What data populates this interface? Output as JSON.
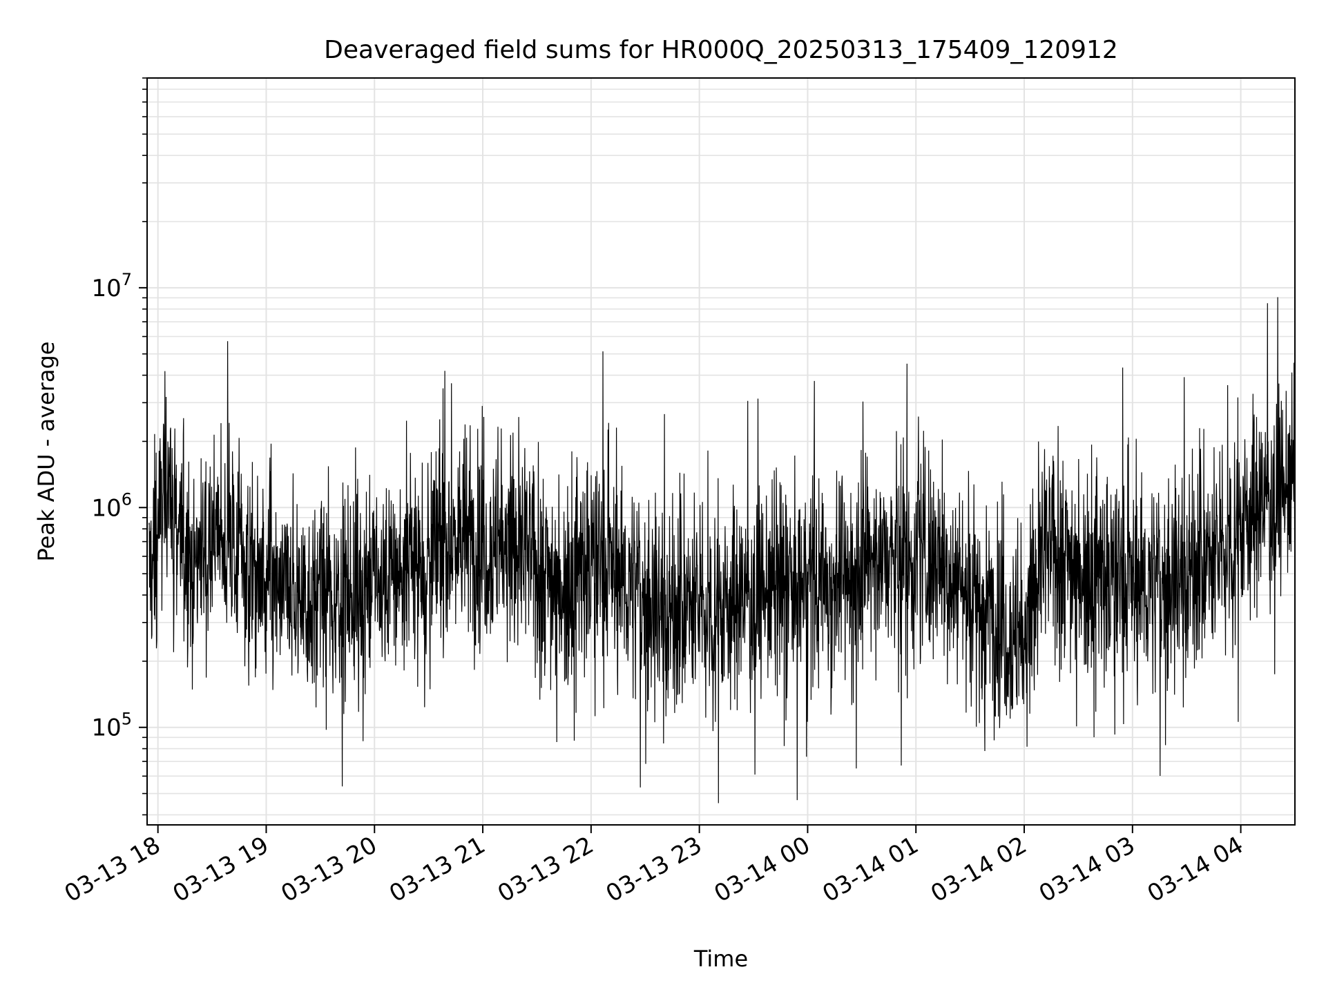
{
  "chart_data": {
    "type": "line",
    "title": "Deaveraged field sums for HR000Q_20250313_175409_120912",
    "xlabel": "Time",
    "ylabel": "Peak ADU - average",
    "yscale": "log",
    "xlim": [
      "2025-03-13 17:54",
      "2025-03-14 04:30"
    ],
    "ylim": [
      36000,
      90000000
    ],
    "grid": true,
    "line_color": "#000000",
    "x_ticks": [
      "03-13 18",
      "03-13 19",
      "03-13 20",
      "03-13 21",
      "03-13 22",
      "03-13 23",
      "03-14 00",
      "03-14 01",
      "03-14 02",
      "03-14 03",
      "03-14 04"
    ],
    "y_ticks": [
      {
        "base": "10",
        "exp": "5",
        "value": 100000
      },
      {
        "base": "10",
        "exp": "6",
        "value": 1000000
      },
      {
        "base": "10",
        "exp": "7",
        "value": 10000000
      }
    ],
    "series": [
      {
        "sampling": "approximate envelope, one point per ~2 minutes",
        "x": [
          "2025-03-13 17:55",
          "2025-03-13 18:00",
          "2025-03-13 18:05",
          "2025-03-13 18:10",
          "2025-03-13 18:15",
          "2025-03-13 18:20",
          "2025-03-13 18:25",
          "2025-03-13 18:30",
          "2025-03-13 18:35",
          "2025-03-13 18:40",
          "2025-03-13 18:45",
          "2025-03-13 18:50",
          "2025-03-13 18:55",
          "2025-03-13 19:00",
          "2025-03-13 19:30",
          "2025-03-13 20:00",
          "2025-03-13 20:30",
          "2025-03-13 20:45",
          "2025-03-13 21:00",
          "2025-03-13 21:15",
          "2025-03-13 21:30",
          "2025-03-13 21:45",
          "2025-03-13 22:00",
          "2025-03-13 22:15",
          "2025-03-13 22:30",
          "2025-03-13 22:45",
          "2025-03-13 23:00",
          "2025-03-13 23:30",
          "2025-03-14 00:00",
          "2025-03-14 00:30",
          "2025-03-14 00:38",
          "2025-03-14 00:45",
          "2025-03-14 01:00",
          "2025-03-14 01:15",
          "2025-03-14 01:30",
          "2025-03-14 01:40",
          "2025-03-14 01:50",
          "2025-03-14 02:00",
          "2025-03-14 02:10",
          "2025-03-14 02:20",
          "2025-03-14 02:30",
          "2025-03-14 02:45",
          "2025-03-14 03:00",
          "2025-03-14 03:15",
          "2025-03-14 03:30",
          "2025-03-14 03:45",
          "2025-03-14 04:00",
          "2025-03-14 04:15",
          "2025-03-14 04:30"
        ],
        "y": [
          500000,
          800000,
          1500000,
          900000,
          600000,
          550000,
          700000,
          800000,
          700000,
          650000,
          700000,
          500000,
          450000,
          420000,
          380000,
          450000,
          600000,
          750000,
          650000,
          700000,
          550000,
          450000,
          600000,
          500000,
          380000,
          320000,
          350000,
          400000,
          450000,
          500000,
          650000,
          550000,
          600000,
          550000,
          420000,
          350000,
          280000,
          250000,
          600000,
          650000,
          550000,
          500000,
          450000,
          450000,
          500000,
          550000,
          900000,
          1100000,
          1300000
        ]
      }
    ]
  }
}
